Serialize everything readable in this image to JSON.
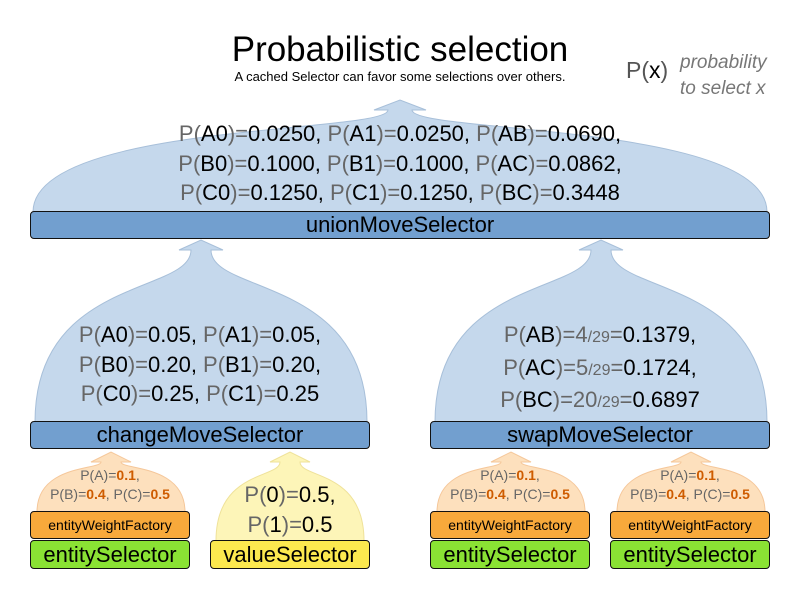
{
  "header": {
    "title": "Probabilistic selection",
    "subtitle": "A cached Selector can favor some selections over others.",
    "legend_symbol_p": "P(",
    "legend_symbol_x": "x",
    "legend_symbol_close": ")",
    "legend_desc_1": "probability",
    "legend_desc_2": "to select x"
  },
  "colors": {
    "blue_dome": "#c5d8ec",
    "blue_bar": "#729fcf",
    "orange_dome": "#fde0bd",
    "orange_bar": "#f8a93b",
    "green_bar": "#8ae234",
    "yellow_dome": "#fdf5b8",
    "yellow_bar": "#fce94f",
    "value_orange": "#ce5c00"
  },
  "union": {
    "label": "unionMoveSelector",
    "lines": [
      "P(A0)=0.0250, P(A1)=0.0250, P(AB)=0.0690,",
      "P(B0)=0.1000, P(B1)=0.1000, P(AC)=0.0862,",
      "P(C0)=0.1250, P(C1)=0.1250, P(BC)=0.3448"
    ]
  },
  "change": {
    "label": "changeMoveSelector",
    "lines": [
      "P(A0)=0.05, P(A1)=0.05,",
      "P(B0)=0.20, P(B1)=0.20,",
      "P(C0)=0.25, P(C1)=0.25"
    ]
  },
  "swap": {
    "label": "swapMoveSelector",
    "lines": [
      "P(AB)=4/29=0.1379,",
      "P(AC)=5/29=0.1724,",
      "P(BC)=20/29=0.6897"
    ]
  },
  "weights": {
    "label": "entityWeightFactory",
    "lines": [
      "P(A)=0.1,",
      "P(B)=0.4, P(C)=0.5"
    ]
  },
  "entity": {
    "label": "entitySelector"
  },
  "value": {
    "label": "valueSelector",
    "lines": [
      "P(0)=0.5,",
      "P(1)=0.5"
    ]
  }
}
